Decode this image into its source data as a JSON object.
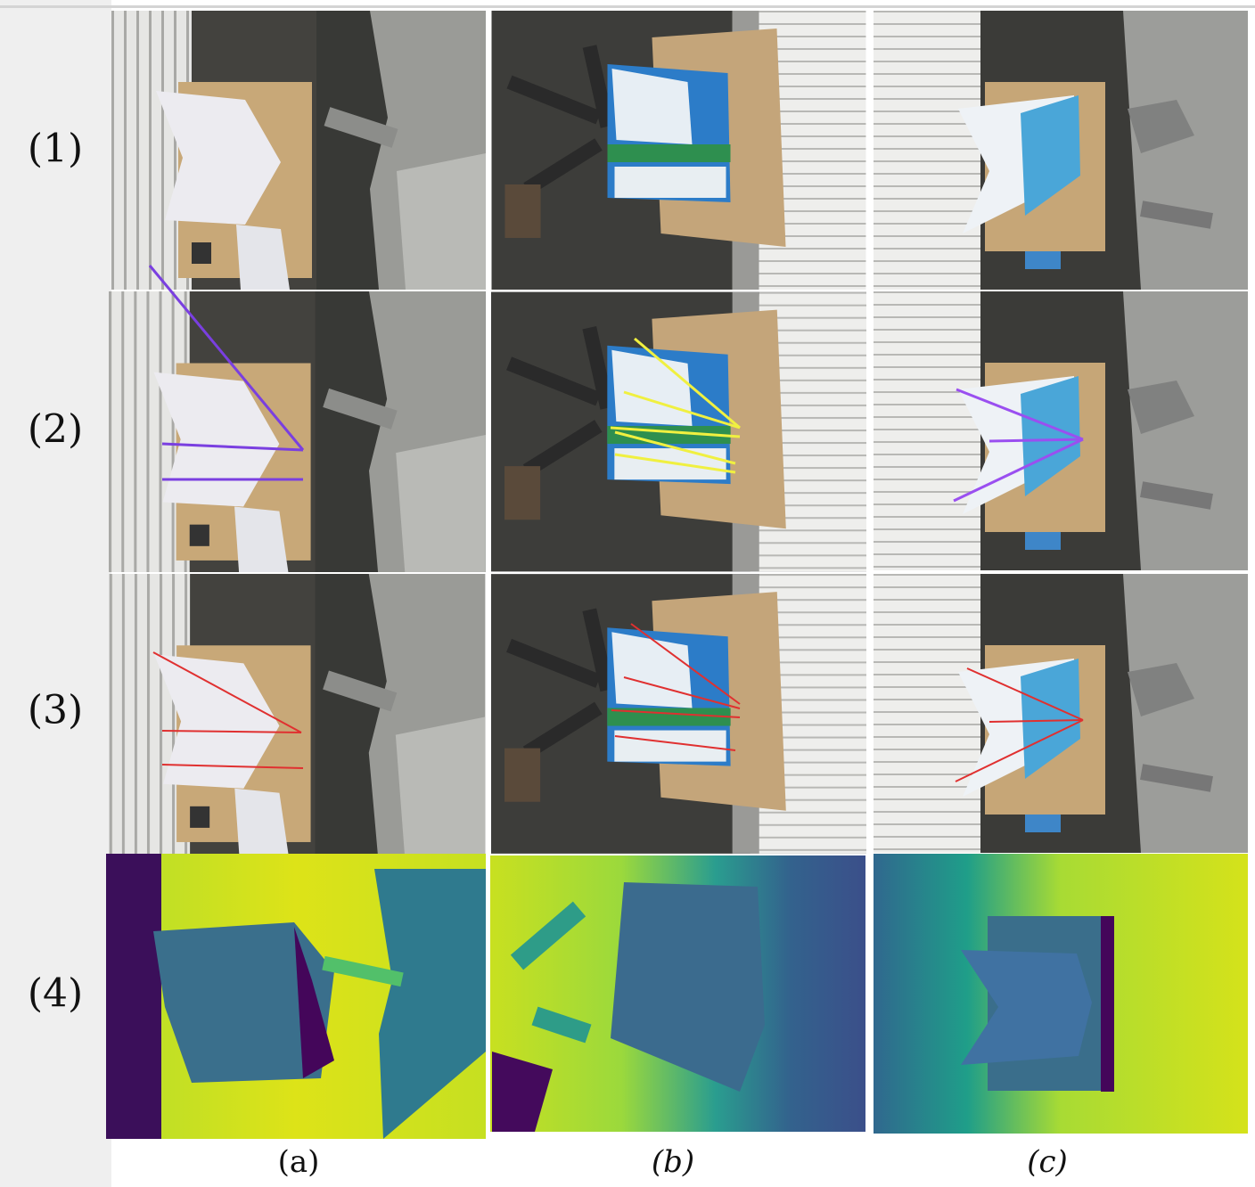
{
  "row_labels": [
    "(1)",
    "(2)",
    "(3)",
    "(4)"
  ],
  "column_labels": [
    "(a)",
    "(b)",
    "(c)"
  ]
}
